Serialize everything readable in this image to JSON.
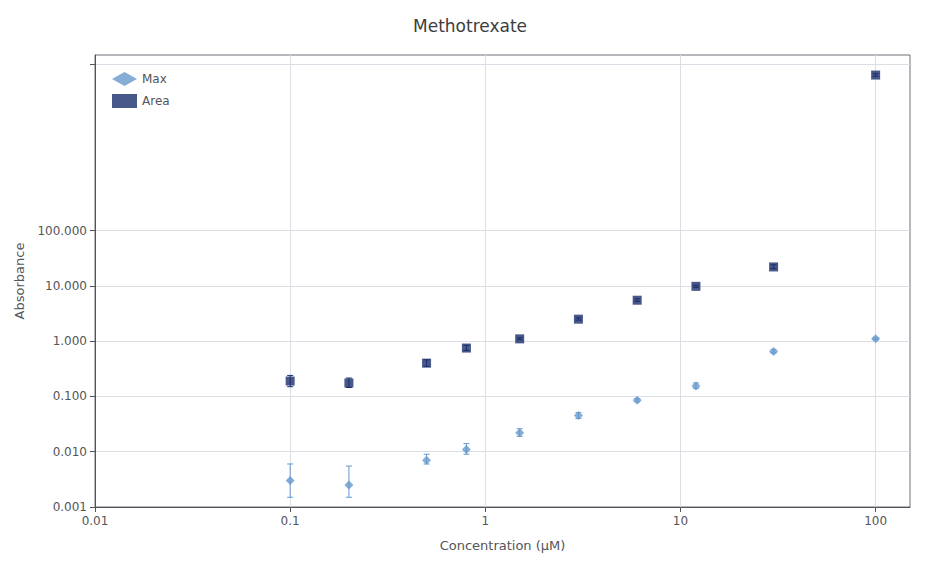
{
  "chart_data": {
    "type": "scatter",
    "title": "Methotrexate",
    "xlabel": "Concentration (μM)",
    "ylabel": "Absorbance",
    "log": true,
    "grid": true,
    "legend": "upper left",
    "xlim": [
      0.01,
      150
    ],
    "ylim": [
      0.001,
      150000
    ],
    "xticks": [
      0.01,
      0.1,
      1,
      10,
      100
    ],
    "yticks": [
      0.001,
      {
        "value": 0.01,
        "label": "0.010"
      },
      {
        "value": 0.1,
        "label": "0.100"
      },
      {
        "value": 1.0,
        "label": "1.000"
      },
      {
        "value": 10.0,
        "label": "10.000"
      },
      {
        "value": 100.0,
        "label": "100.000"
      },
      {
        "value": 100000.0,
        "label": ""
      }
    ],
    "series": [
      {
        "name": "Max",
        "color": "#6699cc",
        "marker": "diamond",
        "x": [
          0.1,
          0.2,
          0.5,
          0.8,
          1.5,
          3.0,
          6.0,
          12.0,
          30.0,
          100.0
        ],
        "values": [
          0.003,
          0.0025,
          0.007,
          0.011,
          0.022,
          0.045,
          0.085,
          0.155,
          0.65,
          1.1
        ],
        "error_lo": [
          0.0015,
          0.001,
          0.001,
          0.002,
          0.003,
          0.005,
          0.005,
          0.015,
          0.04,
          0.04
        ],
        "error_hi": [
          0.003,
          0.003,
          0.002,
          0.003,
          0.004,
          0.006,
          0.006,
          0.02,
          0.05,
          0.05
        ]
      },
      {
        "name": "Area",
        "color": "#1a2e6b",
        "marker": "square",
        "x": [
          0.1,
          0.2,
          0.5,
          0.8,
          1.5,
          3.0,
          6.0,
          12.0,
          30.0,
          100.0
        ],
        "values": [
          0.19,
          0.175,
          0.4,
          0.75,
          1.1,
          2.5,
          5.5,
          9.8,
          22.0,
          65000
        ],
        "error_lo": [
          0.04,
          0.03,
          0.05,
          0.07,
          0.04,
          0.1,
          0.25,
          0.4,
          1.5,
          3000
        ],
        "error_hi": [
          0.05,
          0.04,
          0.06,
          0.09,
          0.05,
          0.15,
          0.3,
          0.5,
          2.0,
          4000
        ]
      }
    ]
  }
}
